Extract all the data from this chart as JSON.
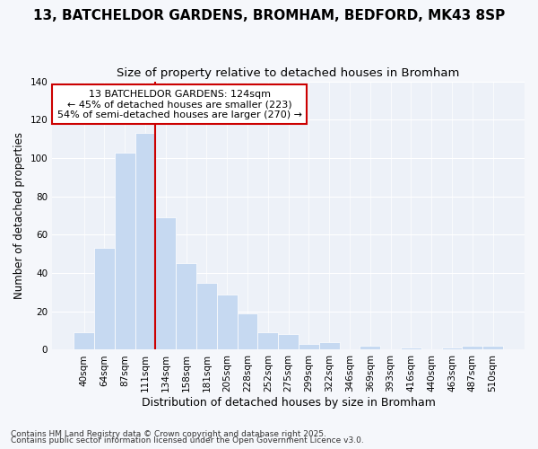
{
  "title": "13, BATCHELDOR GARDENS, BROMHAM, BEDFORD, MK43 8SP",
  "subtitle": "Size of property relative to detached houses in Bromham",
  "xlabel": "Distribution of detached houses by size in Bromham",
  "ylabel": "Number of detached properties",
  "footnote1": "Contains HM Land Registry data © Crown copyright and database right 2025.",
  "footnote2": "Contains public sector information licensed under the Open Government Licence v3.0.",
  "categories": [
    "40sqm",
    "64sqm",
    "87sqm",
    "111sqm",
    "134sqm",
    "158sqm",
    "181sqm",
    "205sqm",
    "228sqm",
    "252sqm",
    "275sqm",
    "299sqm",
    "322sqm",
    "346sqm",
    "369sqm",
    "393sqm",
    "416sqm",
    "440sqm",
    "463sqm",
    "487sqm",
    "510sqm"
  ],
  "values": [
    9,
    53,
    103,
    113,
    69,
    45,
    35,
    29,
    19,
    9,
    8,
    3,
    4,
    0,
    2,
    0,
    1,
    0,
    1,
    2,
    2
  ],
  "bar_color": "#c6d9f1",
  "bar_edgecolor": "#c6d9f1",
  "vline_color": "#cc0000",
  "vline_pos": 3.5,
  "annotation_line1": "13 BATCHELDOR GARDENS: 124sqm",
  "annotation_line2": "← 45% of detached houses are smaller (223)",
  "annotation_line3": "54% of semi-detached houses are larger (270) →",
  "ylim": [
    0,
    140
  ],
  "yticks": [
    0,
    20,
    40,
    60,
    80,
    100,
    120,
    140
  ],
  "background_color": "#f5f7fb",
  "plot_background": "#edf1f8",
  "grid_color": "#ffffff",
  "title_fontsize": 11,
  "subtitle_fontsize": 9.5
}
